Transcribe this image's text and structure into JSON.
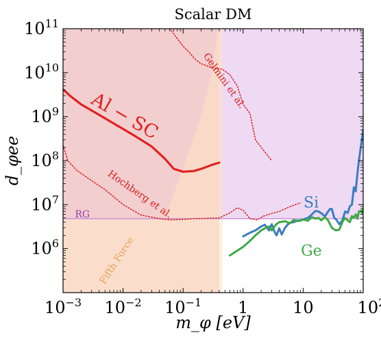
{
  "chart_data": {
    "type": "line",
    "title": "Scalar DM",
    "xlabel": "m_φ [eV]",
    "ylabel": "d_φee",
    "xscale": "log",
    "yscale": "log",
    "xlim": [
      0.001,
      100
    ],
    "ylim": [
      100000,
      100000000000
    ],
    "x_ticks": [
      {
        "value": 0.001,
        "base": "10",
        "exp": "−3"
      },
      {
        "value": 0.01,
        "base": "10",
        "exp": "−2"
      },
      {
        "value": 0.1,
        "base": "10",
        "exp": "−1"
      },
      {
        "value": 10,
        "base": "10",
        "exp": ""
      },
      {
        "value": 100,
        "base": "10",
        "exp": "2"
      }
    ],
    "y_ticks": [
      {
        "value": 1000000,
        "base": "10",
        "exp": "6"
      },
      {
        "value": 10000000,
        "base": "10",
        "exp": "7"
      },
      {
        "value": 100000000,
        "base": "10",
        "exp": "8"
      },
      {
        "value": 1000000000,
        "base": "10",
        "exp": "9"
      },
      {
        "value": 10000000000,
        "base": "10",
        "exp": "10"
      },
      {
        "value": 100000000000,
        "base": "10",
        "exp": "11"
      }
    ],
    "x_tick_one": {
      "value": 1,
      "text": "1"
    },
    "colors": {
      "excluded_pink": "#f4c9c3",
      "excluded_purple": "#efdaf4",
      "fifth_force": "#fde3c4",
      "al_sc": "#e02020",
      "dotted_red": "#d81e1e",
      "si": "#3a7dc0",
      "ge": "#3da845",
      "rg": "#c48ad8",
      "fifth_force_text": "#e8a060",
      "rg_text": "#9b3aa8"
    },
    "regions": [
      {
        "name": "Excluded (left)",
        "x": [
          0.001,
          0.4
        ],
        "y_low": 0.1,
        "y_high": 100000000000
      },
      {
        "name": "Excluded (right)",
        "x": [
          0.4,
          100
        ],
        "y_low": 4800000,
        "y_high": 100000000000
      },
      {
        "name": "Fifth Force",
        "points": [
          [
            0.001,
            100000
          ],
          [
            0.001,
            4800000
          ],
          [
            0.05,
            4800000
          ],
          [
            0.2,
            1000000000
          ],
          [
            0.3,
            10000000000
          ],
          [
            0.38,
            100000000000
          ],
          [
            0.45,
            100000000000
          ],
          [
            0.45,
            100000
          ]
        ]
      }
    ],
    "series": [
      {
        "name": "Al − SC",
        "style": "solid",
        "x": [
          0.001,
          0.0013,
          0.002,
          0.004,
          0.008,
          0.015,
          0.03,
          0.05,
          0.07,
          0.1,
          0.15,
          0.2,
          0.3,
          0.4
        ],
        "y": [
          4200000000,
          3000000000,
          1900000000,
          1100000000,
          630000000,
          380000000,
          210000000,
          110000000,
          65000000,
          56000000,
          58000000,
          65000000,
          80000000,
          90000000
        ]
      },
      {
        "name": "Hochberg et al.",
        "style": "dotted",
        "x": [
          0.001,
          0.0012,
          0.0017,
          0.003,
          0.005,
          0.01,
          0.02,
          0.04,
          0.06,
          0.1,
          0.15,
          0.25,
          0.4,
          0.6,
          0.8,
          1.0,
          1.3,
          1.7,
          2.2,
          3.0,
          4.0,
          6.0,
          9.0
        ],
        "y": [
          220000000,
          100000000,
          60000000,
          35000000,
          22000000,
          10000000,
          5800000,
          4800000,
          4500000,
          4600000,
          4800000,
          4900000,
          5000000,
          6500000,
          8500000,
          7500000,
          4800000,
          4500000,
          5500000,
          6300000,
          7000000,
          9000000,
          11000000
        ]
      },
      {
        "name": "Gelmini et al.",
        "style": "dotted",
        "x": [
          0.06,
          0.08,
          0.1,
          0.13,
          0.16,
          0.2,
          0.3,
          0.45,
          0.6,
          0.8,
          1.0,
          1.3,
          1.6,
          2.0,
          3.0
        ],
        "y": [
          100000000000,
          60000000000,
          40000000000,
          28000000000,
          20000000000,
          16000000000,
          13000000000,
          12000000000,
          9000000000,
          5000000000,
          1900000000,
          1200000000,
          300000000,
          200000000,
          100000000
        ]
      },
      {
        "name": "Si",
        "style": "solid",
        "x": [
          1.0,
          1.3,
          1.6,
          2.0,
          2.3,
          2.7,
          3.0,
          3.3,
          3.6,
          4.0,
          4.4,
          5.0,
          5.6,
          6.2,
          7.0,
          8.0,
          9.0,
          10,
          12,
          14,
          16,
          18,
          20,
          23,
          26,
          28,
          30,
          33,
          36,
          40,
          45,
          50,
          55,
          60,
          65,
          70,
          75,
          80,
          85,
          90,
          95,
          100
        ],
        "y": [
          1900000,
          2300000,
          2600000,
          3200000,
          3500000,
          2600000,
          3600000,
          2500000,
          2000000,
          2900000,
          2100000,
          3000000,
          3600000,
          3900000,
          4000000,
          4400000,
          4300000,
          4600000,
          5000000,
          6000000,
          7200000,
          7000000,
          6400000,
          5400000,
          7000000,
          8000000,
          8000000,
          5000000,
          4500000,
          3600000,
          4400000,
          7000000,
          6500000,
          9200000,
          10000000,
          25000000,
          20000000,
          50000000,
          100000000,
          180000000,
          300000000,
          500000000
        ]
      },
      {
        "name": "Ge",
        "style": "solid",
        "x": [
          0.6,
          0.8,
          1.0,
          1.3,
          1.6,
          2.0,
          2.3,
          2.7,
          3.0,
          3.5,
          4.0,
          5.0,
          6.0,
          7.0,
          8.0,
          9.0,
          10,
          12,
          14,
          16,
          18,
          20,
          23,
          26,
          28,
          30,
          32,
          35,
          40,
          45,
          50,
          55,
          60,
          65,
          70,
          75,
          80,
          85,
          90,
          95,
          100
        ],
        "y": [
          700000,
          900000,
          1100000,
          1500000,
          2000000,
          2600000,
          2900000,
          3200000,
          2600000,
          3500000,
          4000000,
          4200000,
          3800000,
          4500000,
          4200000,
          4400000,
          4600000,
          4300000,
          5200000,
          4800000,
          5000000,
          4400000,
          5200000,
          4400000,
          3600000,
          3000000,
          2800000,
          2600000,
          2700000,
          4000000,
          5000000,
          4400000,
          4000000,
          5500000,
          5000000,
          6000000,
          4800000,
          7000000,
          7200000,
          6500000,
          8000000
        ]
      },
      {
        "name": "RG",
        "style": "solid",
        "x": [
          0.001,
          100
        ],
        "y": [
          4800000,
          4800000
        ]
      }
    ],
    "annotations": [
      {
        "text": "Al − SC"
      },
      {
        "text": "Gelmini et al."
      },
      {
        "text": "Hochberg et al."
      },
      {
        "text": "RG"
      },
      {
        "text": "Fifth Force"
      },
      {
        "text": "Si"
      },
      {
        "text": "Ge"
      }
    ],
    "grid": false,
    "legend": "none"
  }
}
